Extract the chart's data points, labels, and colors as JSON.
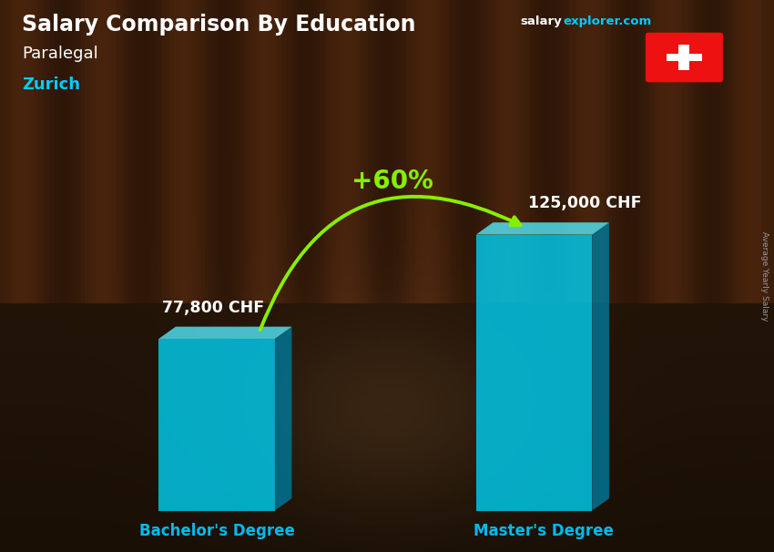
{
  "title_main": "Salary Comparison By Education",
  "subtitle1": "Paralegal",
  "subtitle2": "Zurich",
  "categories": [
    "Bachelor's Degree",
    "Master's Degree"
  ],
  "values": [
    77800,
    125000
  ],
  "value_labels": [
    "77,800 CHF",
    "125,000 CHF"
  ],
  "bar_face_color": "#00ccee",
  "bar_side_color": "#007799",
  "bar_top_color": "#55eeff",
  "bar_alpha": 0.82,
  "pct_label": "+60%",
  "pct_color": "#88ee00",
  "ylabel_text": "Average Yearly Salary",
  "bg_color": "#1a1008",
  "title_color": "#ffffff",
  "subtitle1_color": "#ffffff",
  "subtitle2_color": "#00ccff",
  "label_color": "#ffffff",
  "xticklabel_color": "#00bbee",
  "site_color_salary": "#ffffff",
  "site_color_explorer": "#00ccff",
  "swiss_flag_red": "#ee1111",
  "swiss_flag_white": "#ffffff",
  "arrow_color": "#88ee00"
}
